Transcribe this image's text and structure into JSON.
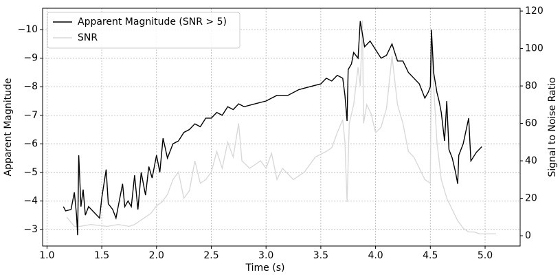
{
  "chart_data": {
    "type": "line",
    "x_label": "Time (s)",
    "y_label": "Apparent Magnitude",
    "y2_label": "Signal to Noise Ratio",
    "xlim": [
      0.96,
      5.32
    ],
    "ylim": [
      -2.42,
      -10.75
    ],
    "y2lim": [
      -5.5,
      121.5
    ],
    "xticks": [
      {
        "value": 1.0,
        "label": "1.0"
      },
      {
        "value": 1.5,
        "label": "1.5"
      },
      {
        "value": 2.0,
        "label": "2.0"
      },
      {
        "value": 2.5,
        "label": "2.5"
      },
      {
        "value": 3.0,
        "label": "3.0"
      },
      {
        "value": 3.5,
        "label": "3.5"
      },
      {
        "value": 4.0,
        "label": "4.0"
      },
      {
        "value": 4.5,
        "label": "4.5"
      },
      {
        "value": 5.0,
        "label": "5.0"
      }
    ],
    "yticks": [
      {
        "value": -10,
        "label": "−10"
      },
      {
        "value": -9,
        "label": "−9"
      },
      {
        "value": -8,
        "label": "−8"
      },
      {
        "value": -7,
        "label": "−7"
      },
      {
        "value": -6,
        "label": "−6"
      },
      {
        "value": -5,
        "label": "−5"
      },
      {
        "value": -4,
        "label": "−4"
      },
      {
        "value": -3,
        "label": "−3"
      }
    ],
    "y2ticks": [
      0,
      20,
      40,
      60,
      80,
      100,
      120
    ],
    "grid": true,
    "legend": "upper left",
    "series": [
      {
        "name": "Apparent Magnitude (SNR > 5)",
        "color": "#000000",
        "axis": "y",
        "x": [
          1.15,
          1.17,
          1.22,
          1.25,
          1.27,
          1.28,
          1.29,
          1.31,
          1.33,
          1.35,
          1.38,
          1.43,
          1.48,
          1.5,
          1.54,
          1.56,
          1.6,
          1.63,
          1.66,
          1.69,
          1.71,
          1.74,
          1.77,
          1.8,
          1.83,
          1.86,
          1.9,
          1.93,
          1.96,
          2.0,
          2.03,
          2.06,
          2.1,
          2.15,
          2.2,
          2.25,
          2.3,
          2.35,
          2.4,
          2.45,
          2.5,
          2.55,
          2.6,
          2.65,
          2.7,
          2.75,
          2.8,
          2.9,
          3.0,
          3.1,
          3.2,
          3.3,
          3.4,
          3.5,
          3.55,
          3.6,
          3.65,
          3.7,
          3.72,
          3.74,
          3.75,
          3.78,
          3.8,
          3.84,
          3.86,
          3.9,
          3.95,
          4.0,
          4.05,
          4.1,
          4.15,
          4.2,
          4.25,
          4.3,
          4.35,
          4.4,
          4.45,
          4.48,
          4.5,
          4.51,
          4.53,
          4.56,
          4.58,
          4.6,
          4.63,
          4.65,
          4.67,
          4.7,
          4.73,
          4.75,
          4.76,
          4.8,
          4.85,
          4.87,
          4.92,
          4.97
        ],
        "values": [
          -3.8,
          -3.65,
          -3.7,
          -4.3,
          -3.5,
          -2.8,
          -5.6,
          -3.8,
          -4.4,
          -3.5,
          -3.8,
          -3.6,
          -3.4,
          -4.1,
          -5.1,
          -3.9,
          -3.7,
          -3.4,
          -4.0,
          -4.6,
          -3.8,
          -4.0,
          -3.8,
          -4.9,
          -3.7,
          -5.0,
          -4.2,
          -5.2,
          -4.8,
          -5.6,
          -5.0,
          -6.2,
          -5.5,
          -6.0,
          -6.1,
          -6.4,
          -6.5,
          -6.7,
          -6.6,
          -6.9,
          -6.9,
          -7.1,
          -7.0,
          -7.3,
          -7.2,
          -7.4,
          -7.3,
          -7.4,
          -7.5,
          -7.7,
          -7.7,
          -7.9,
          -8.0,
          -8.1,
          -8.3,
          -8.2,
          -8.4,
          -8.3,
          -7.7,
          -6.8,
          -8.6,
          -8.8,
          -9.2,
          -9.0,
          -10.3,
          -9.4,
          -9.6,
          -9.3,
          -9.0,
          -9.1,
          -9.5,
          -8.9,
          -8.9,
          -8.5,
          -8.3,
          -8.1,
          -7.6,
          -7.8,
          -8.0,
          -10.0,
          -8.5,
          -7.8,
          -7.5,
          -7.1,
          -6.1,
          -7.5,
          -5.8,
          -5.5,
          -5.0,
          -4.6,
          -5.6,
          -6.0,
          -6.9,
          -5.4,
          -5.7,
          -5.9
        ]
      },
      {
        "name": "SNR",
        "color": "#d9d9d9",
        "axis": "y2",
        "x": [
          1.18,
          1.25,
          1.3,
          1.4,
          1.55,
          1.65,
          1.75,
          1.8,
          1.85,
          1.9,
          1.95,
          2.0,
          2.05,
          2.1,
          2.15,
          2.2,
          2.25,
          2.3,
          2.35,
          2.4,
          2.45,
          2.5,
          2.55,
          2.6,
          2.65,
          2.7,
          2.75,
          2.78,
          2.85,
          2.95,
          3.0,
          3.05,
          3.1,
          3.15,
          3.25,
          3.35,
          3.45,
          3.55,
          3.6,
          3.65,
          3.7,
          3.72,
          3.74,
          3.76,
          3.8,
          3.84,
          3.86,
          3.88,
          3.89,
          3.92,
          3.96,
          4.0,
          4.05,
          4.1,
          4.15,
          4.2,
          4.25,
          4.3,
          4.35,
          4.4,
          4.45,
          4.5,
          4.51,
          4.53,
          4.56,
          4.6,
          4.65,
          4.7,
          4.75,
          4.8,
          4.85,
          4.9,
          4.95,
          5.0,
          5.1
        ],
        "values": [
          10,
          5,
          5,
          6,
          5,
          6,
          5,
          6,
          8,
          10,
          12,
          16,
          18,
          22,
          30,
          34,
          20,
          24,
          40,
          28,
          30,
          34,
          45,
          36,
          50,
          42,
          60,
          40,
          36,
          40,
          36,
          44,
          30,
          36,
          30,
          34,
          42,
          45,
          47,
          55,
          62,
          50,
          18,
          60,
          70,
          90,
          80,
          115,
          60,
          70,
          65,
          55,
          58,
          68,
          96,
          70,
          60,
          45,
          42,
          36,
          30,
          28,
          100,
          80,
          50,
          30,
          20,
          14,
          8,
          4,
          2,
          2,
          1,
          1,
          1
        ]
      }
    ]
  }
}
